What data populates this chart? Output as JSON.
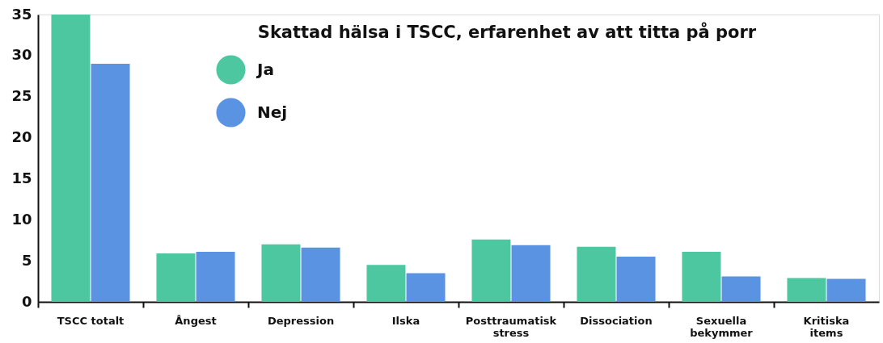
{
  "chart_data": {
    "type": "bar",
    "title": "Skattad hälsa i TSCC, erfarenhet av att titta på porr",
    "categories": [
      "TSCC totalt",
      "Ångest",
      "Depression",
      "Ilska",
      "Posttraumatisk stress",
      "Dissociation",
      "Sexuella bekymmer",
      "Kritiska items"
    ],
    "series": [
      {
        "name": "Ja",
        "color": "#4dc7a0",
        "values": [
          35,
          5.9,
          7.0,
          4.5,
          7.6,
          6.7,
          6.1,
          2.9
        ]
      },
      {
        "name": "Nej",
        "color": "#5b93e3",
        "values": [
          29,
          6.1,
          6.6,
          3.5,
          6.9,
          5.5,
          3.1,
          2.8
        ]
      }
    ],
    "ylim": [
      0,
      35
    ],
    "yticks": [
      0,
      5,
      10,
      15,
      20,
      25,
      30,
      35
    ],
    "grid": false,
    "legend": "top left"
  }
}
